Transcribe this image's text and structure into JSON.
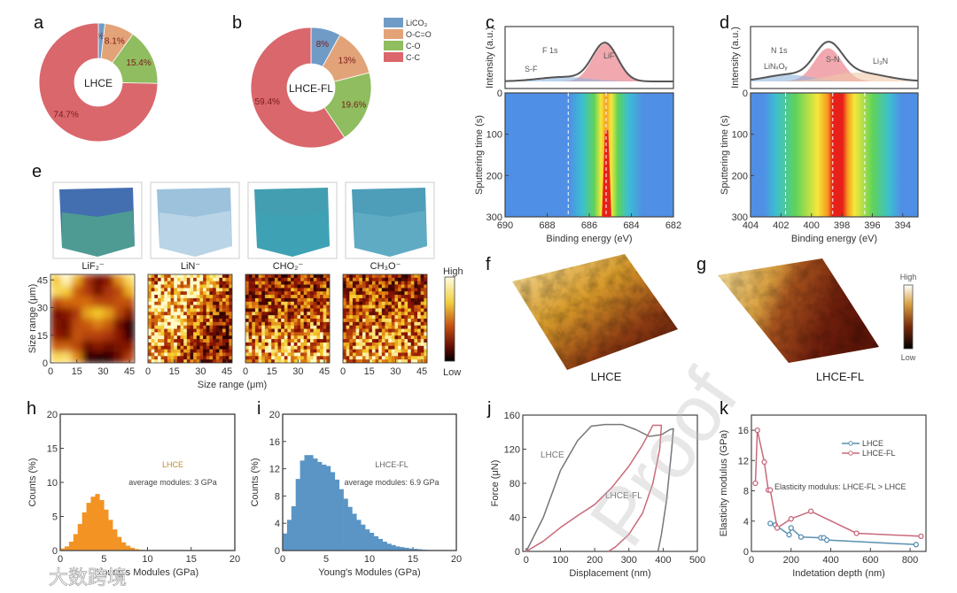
{
  "panel_labels": {
    "a": "a",
    "b": "b",
    "c": "c",
    "d": "d",
    "e": "e",
    "f": "f",
    "g": "g",
    "h": "h",
    "i": "i",
    "j": "j",
    "k": "k"
  },
  "colors": {
    "LiCO3": "#6f9bc6",
    "O-C=O": "#e3a378",
    "C-O": "#8fbd5f",
    "C-C": "#d9676c",
    "hist_h": "#f39324",
    "hist_i": "#5a95c6",
    "lhce_line": "#5a8fb0",
    "lhcefl_line": "#c86a7a"
  },
  "watermark": {
    "text": "大数跨境",
    "proof": "Proof"
  },
  "chart_data": [
    {
      "id": "a",
      "type": "pie",
      "center_label": "LHCE",
      "categories": [
        "LiCO₃",
        "O-C=O",
        "C-O",
        "C-C"
      ],
      "values": [
        1.8,
        8.1,
        15.4,
        74.7
      ],
      "value_labels": [
        "1.8%",
        "8.1%",
        "15.4%",
        "74.7%"
      ]
    },
    {
      "id": "b",
      "type": "pie",
      "center_label": "LHCE-FL",
      "categories": [
        "LiCO₃",
        "O-C=O",
        "C-O",
        "C-C"
      ],
      "values": [
        8,
        13,
        19.6,
        59.4
      ],
      "value_labels": [
        "8%",
        "13%",
        "19.6%",
        "59.4%"
      ],
      "legend": "top-right"
    },
    {
      "id": "c",
      "type": "heatmap",
      "spectrum_labels": [
        "F 1s",
        "LiF",
        "S-F"
      ],
      "ylabel_top": "Intensity (a.u.)",
      "ylabel": "Sputtering time (s)",
      "xlabel": "Binding energy (eV)",
      "xlim": [
        690,
        682
      ],
      "ylim": [
        0,
        300
      ],
      "xticks": [
        690,
        688,
        686,
        684,
        682
      ],
      "yticks": [
        0,
        100,
        200,
        300
      ],
      "peaks": [
        {
          "name": "LiF",
          "center": 685.2
        },
        {
          "name": "S-F",
          "center": 687.0
        }
      ]
    },
    {
      "id": "d",
      "type": "heatmap",
      "spectrum_labels": [
        "N 1s",
        "S-N",
        "LiNₓOᵧ",
        "Li₃N"
      ],
      "ylabel_top": "Intensity (a.u.)",
      "ylabel": "Sputtering time (s)",
      "xlabel": "Binding energy (eV)",
      "xlim": [
        404,
        393
      ],
      "ylim": [
        0,
        300
      ],
      "xticks": [
        404,
        402,
        400,
        398,
        396,
        394
      ],
      "yticks": [
        0,
        100,
        200,
        300
      ],
      "peaks": [
        {
          "name": "LiNₓOᵧ",
          "center": 401.7
        },
        {
          "name": "S-N",
          "center": 398.6
        },
        {
          "name": "Li₃N",
          "center": 396.5
        }
      ]
    },
    {
      "id": "e",
      "type": "heatmap",
      "maps": [
        "LiF₂⁻",
        "LiN⁻",
        "CHO₂⁻",
        "CH₃O⁻"
      ],
      "xlabel": "Size range (μm)",
      "ylabel": "Size range (μm)",
      "xticks": [
        0,
        15,
        30,
        45
      ],
      "yticks": [
        0,
        15,
        30,
        45
      ],
      "colorbar": {
        "high": "High",
        "low": "Low"
      }
    },
    {
      "id": "fg",
      "type": "heatmap",
      "samples": [
        "LHCE",
        "LHCE-FL"
      ],
      "colorbar": {
        "high": "High",
        "low": "Low"
      }
    },
    {
      "id": "h",
      "type": "bar",
      "title": "LHCE",
      "annotation": "average modules: 3 GPa",
      "xlabel": "Young's Modules (GPa)",
      "ylabel": "Counts (%)",
      "xlim": [
        0,
        20
      ],
      "ylim": [
        0,
        20
      ],
      "xticks": [
        0,
        5,
        10,
        15,
        20
      ],
      "yticks": [
        0,
        5,
        10,
        15,
        20
      ],
      "bin_width": 0.5,
      "x": [
        0.25,
        0.75,
        1.25,
        1.75,
        2.25,
        2.75,
        3.25,
        3.75,
        4.25,
        4.75,
        5.25,
        5.75,
        6.25,
        6.75,
        7.25,
        7.75,
        8.25,
        8.75,
        9.25,
        9.75,
        10.25
      ],
      "values": [
        0.3,
        0.6,
        1.3,
        2.4,
        3.9,
        5.6,
        7.0,
        7.9,
        8.3,
        7.4,
        6.0,
        4.5,
        3.1,
        2.0,
        1.2,
        0.7,
        0.4,
        0.2,
        0.1,
        0.05,
        0.02
      ]
    },
    {
      "id": "i",
      "type": "bar",
      "title": "LHCE-FL",
      "annotation": "average modules: 6.9 GPa",
      "xlabel": "Young's Modules (GPa)",
      "ylabel": "Counts (%)",
      "xlim": [
        0,
        20
      ],
      "ylim": [
        0,
        20
      ],
      "xticks": [
        0,
        5,
        10,
        15,
        20
      ],
      "yticks": [
        0,
        4,
        8,
        12,
        16,
        20
      ],
      "bin_width": 0.5,
      "x": [
        0.25,
        0.75,
        1.25,
        1.75,
        2.25,
        2.75,
        3.25,
        3.75,
        4.25,
        4.75,
        5.25,
        5.75,
        6.25,
        6.75,
        7.25,
        7.75,
        8.25,
        8.75,
        9.25,
        9.75,
        10.25,
        10.75,
        11.25,
        11.75,
        12.25,
        12.75,
        13.25,
        13.75,
        14.25,
        14.75,
        15.25,
        15.75,
        16.25,
        16.75,
        17.25,
        17.75,
        18.25
      ],
      "values": [
        2.5,
        4.5,
        6.5,
        10.5,
        13.2,
        14.0,
        14.0,
        13.5,
        13.0,
        12.6,
        12.4,
        11.5,
        10.4,
        9.0,
        7.6,
        6.4,
        5.4,
        4.5,
        3.8,
        3.1,
        2.6,
        2.1,
        1.7,
        1.3,
        1.0,
        0.8,
        0.6,
        0.5,
        0.4,
        0.3,
        0.25,
        0.2,
        0.12,
        0.08,
        0.05,
        0.03,
        0.02
      ]
    },
    {
      "id": "j",
      "type": "line",
      "xlabel": "Displacement (nm)",
      "ylabel": "Force (μN)",
      "xlim": [
        -10,
        500
      ],
      "ylim": [
        0,
        160
      ],
      "xticks": [
        0,
        100,
        200,
        300,
        400,
        500
      ],
      "yticks": [
        0,
        40,
        80,
        120,
        160
      ],
      "series": [
        {
          "name": "LHCE",
          "x": [
            0,
            50,
            100,
            150,
            190,
            230,
            280,
            320,
            360,
            395,
            420,
            430,
            425,
            410,
            395,
            385
          ],
          "y": [
            0,
            40,
            95,
            130,
            147,
            149,
            149,
            143,
            135,
            137,
            143,
            144,
            120,
            60,
            20,
            0
          ]
        },
        {
          "name": "LHCE-FL",
          "x": [
            0,
            50,
            100,
            150,
            200,
            250,
            300,
            340,
            370,
            395,
            390,
            370,
            340,
            300,
            260,
            240
          ],
          "y": [
            0,
            12,
            28,
            42,
            55,
            75,
            100,
            125,
            148,
            148,
            120,
            80,
            45,
            20,
            5,
            0
          ]
        }
      ]
    },
    {
      "id": "k",
      "type": "line",
      "annotation": "Elasticity modulus: LHCE-FL > LHCE",
      "xlabel": "Indetation depth (nm)",
      "ylabel": "Elasticity modulus (GPa)",
      "xlim": [
        0,
        880
      ],
      "ylim": [
        0,
        18
      ],
      "xticks": [
        0,
        200,
        400,
        600,
        800
      ],
      "yticks": [
        0,
        4,
        8,
        12,
        16
      ],
      "legend": "top-right",
      "series": [
        {
          "name": "LHCE",
          "x": [
            95,
            120,
            190,
            200,
            250,
            350,
            365,
            380,
            830
          ],
          "y": [
            3.7,
            3.5,
            2.2,
            3.1,
            1.9,
            1.8,
            1.8,
            1.5,
            0.9
          ]
        },
        {
          "name": "LHCE-FL",
          "x": [
            20,
            30,
            65,
            85,
            95,
            130,
            200,
            300,
            530,
            855
          ],
          "y": [
            9,
            16,
            11.8,
            8.1,
            8.1,
            3.1,
            4.3,
            5.3,
            2.4,
            2.0
          ]
        }
      ]
    }
  ]
}
